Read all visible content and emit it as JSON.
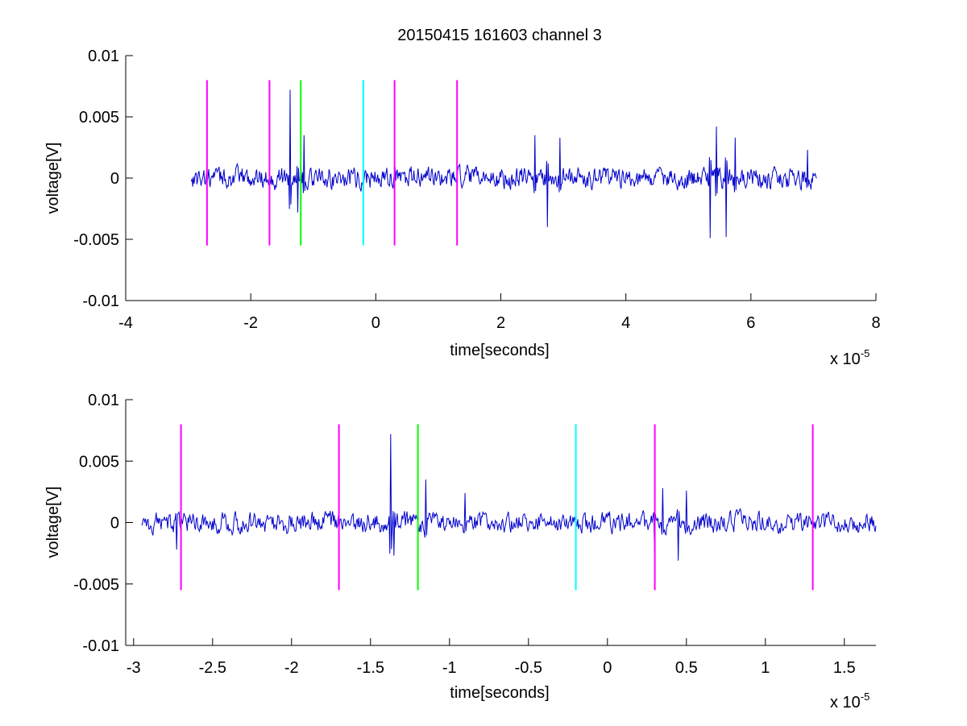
{
  "chart_data": [
    {
      "type": "line",
      "title": "20150415 161603 channel 3",
      "xlabel": "time[seconds]",
      "ylabel": "voltage[V]",
      "x_exponent_label": "x 10",
      "x_exponent": "-5",
      "xlim": [
        -4,
        8
      ],
      "ylim": [
        -0.01,
        0.01
      ],
      "x_ticks": [
        -4,
        -2,
        0,
        2,
        4,
        6,
        8
      ],
      "x_tick_labels": [
        "-4",
        "-2",
        "0",
        "2",
        "4",
        "6",
        "8"
      ],
      "y_ticks": [
        0.01,
        0.005,
        0,
        -0.005,
        -0.01
      ],
      "y_tick_labels": [
        "0.01",
        "0.005",
        "0",
        "-0.005",
        "-0.01"
      ],
      "grid": false,
      "series": [
        {
          "color": "#0000cc",
          "x_range": [
            -2.95,
            7.05
          ],
          "noise_amplitude": 0.0013,
          "bursts": [
            {
              "x": -1.37,
              "value": 0.0072
            },
            {
              "x": -1.25,
              "value": -0.0028
            },
            {
              "x": -1.15,
              "value": 0.0035
            },
            {
              "x": 2.55,
              "value": 0.0035
            },
            {
              "x": 2.75,
              "value": -0.004
            },
            {
              "x": 2.95,
              "value": 0.0033
            },
            {
              "x": 5.35,
              "value": -0.0049
            },
            {
              "x": 5.45,
              "value": 0.0042
            },
            {
              "x": 5.6,
              "value": -0.0048
            },
            {
              "x": 5.75,
              "value": 0.0033
            },
            {
              "x": 6.9,
              "value": 0.0023
            }
          ]
        }
      ],
      "markers": [
        {
          "x": -2.7,
          "color": "#ff00ff",
          "y_range": [
            -0.0055,
            0.008
          ]
        },
        {
          "x": -1.7,
          "color": "#ff00ff",
          "y_range": [
            -0.0055,
            0.008
          ]
        },
        {
          "x": -1.2,
          "color": "#00ff00",
          "y_range": [
            -0.0055,
            0.008
          ]
        },
        {
          "x": -0.2,
          "color": "#00ffff",
          "y_range": [
            -0.0055,
            0.008
          ]
        },
        {
          "x": 0.3,
          "color": "#ff00ff",
          "y_range": [
            -0.0055,
            0.008
          ]
        },
        {
          "x": 1.3,
          "color": "#ff00ff",
          "y_range": [
            -0.0055,
            0.008
          ]
        }
      ]
    },
    {
      "type": "line",
      "title": "",
      "xlabel": "time[seconds]",
      "ylabel": "voltage[V]",
      "x_exponent_label": "x 10",
      "x_exponent": "-5",
      "xlim": [
        -3.05,
        1.7
      ],
      "ylim": [
        -0.01,
        0.01
      ],
      "x_ticks": [
        -3,
        -2.5,
        -2,
        -1.5,
        -1,
        -0.5,
        0,
        0.5,
        1,
        1.5
      ],
      "x_tick_labels": [
        "-3",
        "-2.5",
        "-2",
        "-1.5",
        "-1",
        "-0.5",
        "0",
        "0.5",
        "1",
        "1.5"
      ],
      "y_ticks": [
        0.01,
        0.005,
        0,
        -0.005,
        -0.01
      ],
      "y_tick_labels": [
        "0.01",
        "0.005",
        "0",
        "-0.005",
        "-0.01"
      ],
      "grid": false,
      "series": [
        {
          "color": "#0000cc",
          "x_range": [
            -2.95,
            1.7
          ],
          "noise_amplitude": 0.0013,
          "bursts": [
            {
              "x": -2.73,
              "value": -0.0022
            },
            {
              "x": -1.37,
              "value": 0.0072
            },
            {
              "x": -1.35,
              "value": -0.0027
            },
            {
              "x": -1.15,
              "value": 0.0035
            },
            {
              "x": -0.9,
              "value": 0.0024
            },
            {
              "x": 0.3,
              "value": -0.0024
            },
            {
              "x": 0.35,
              "value": 0.0028
            },
            {
              "x": 0.45,
              "value": -0.0031
            },
            {
              "x": 0.5,
              "value": 0.0026
            }
          ]
        }
      ],
      "markers": [
        {
          "x": -2.7,
          "color": "#ff00ff",
          "y_range": [
            -0.0055,
            0.008
          ]
        },
        {
          "x": -1.7,
          "color": "#ff00ff",
          "y_range": [
            -0.0055,
            0.008
          ]
        },
        {
          "x": -1.2,
          "color": "#00ff00",
          "y_range": [
            -0.0055,
            0.008
          ]
        },
        {
          "x": -0.2,
          "color": "#00ffff",
          "y_range": [
            -0.0055,
            0.008
          ]
        },
        {
          "x": 0.3,
          "color": "#ff00ff",
          "y_range": [
            -0.0055,
            0.008
          ]
        },
        {
          "x": 1.3,
          "color": "#ff00ff",
          "y_range": [
            -0.0055,
            0.008
          ]
        }
      ]
    }
  ]
}
